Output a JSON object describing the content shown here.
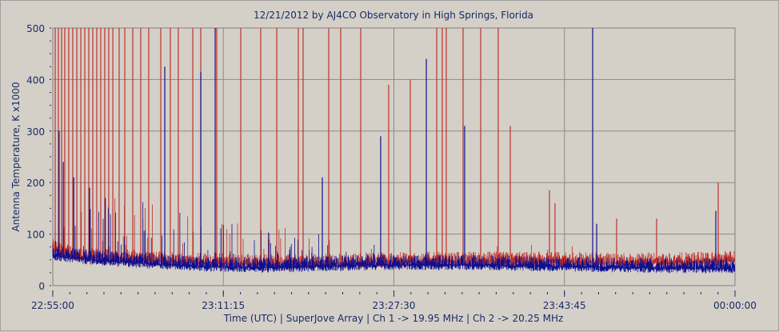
{
  "chart_data": {
    "type": "line",
    "title": "12/21/2012  by  AJ4CO Observatory  in  High Springs, Florida",
    "xlabel": "Time (UTC)  |  SuperJove Array  |  Ch 1 -> 19.95 MHz  |  Ch 2 -> 20.25 MHz",
    "ylabel": "Antenna Temperature, K x1000",
    "x_unit": "minutes after 22:55:00",
    "xlim": [
      0,
      65
    ],
    "ylim": [
      0,
      500
    ],
    "yticks": [
      0,
      100,
      200,
      300,
      400,
      500
    ],
    "ytick_labels": [
      "0",
      "100",
      "200",
      "300",
      "400",
      "500"
    ],
    "xticks": [
      0,
      16.25,
      32.5,
      48.75,
      65
    ],
    "xtick_labels": [
      "22:55:00",
      "23:11:15",
      "23:27:30",
      "23:43:45",
      "00:00:00"
    ],
    "grid": true,
    "series": [
      {
        "name": "Ch 1 (19.95 MHz)",
        "color": "#c0302a",
        "baseline": [
          [
            0,
            70
          ],
          [
            1,
            62
          ],
          [
            3,
            55
          ],
          [
            6,
            50
          ],
          [
            10,
            47
          ],
          [
            15,
            44
          ],
          [
            20,
            42
          ],
          [
            25,
            42
          ],
          [
            30,
            44
          ],
          [
            35,
            46
          ],
          [
            40,
            46
          ],
          [
            45,
            46
          ],
          [
            50,
            45
          ],
          [
            55,
            44
          ],
          [
            60,
            45
          ],
          [
            65,
            48
          ]
        ],
        "spikes": [
          [
            0.23,
            500
          ],
          [
            0.53,
            500
          ],
          [
            0.84,
            500
          ],
          [
            1.14,
            500
          ],
          [
            1.52,
            500
          ],
          [
            1.9,
            500
          ],
          [
            2.29,
            500
          ],
          [
            2.67,
            500
          ],
          [
            3.05,
            500
          ],
          [
            3.43,
            500
          ],
          [
            3.81,
            500
          ],
          [
            4.19,
            500
          ],
          [
            4.57,
            500
          ],
          [
            4.95,
            500
          ],
          [
            5.33,
            500
          ],
          [
            5.72,
            500
          ],
          [
            6.32,
            500
          ],
          [
            6.86,
            500
          ],
          [
            7.62,
            500
          ],
          [
            8.38,
            500
          ],
          [
            9.14,
            500
          ],
          [
            10.29,
            500
          ],
          [
            11.2,
            500
          ],
          [
            11.96,
            500
          ],
          [
            13.34,
            500
          ],
          [
            14.1,
            500
          ],
          [
            15.62,
            500
          ],
          [
            17.91,
            500
          ],
          [
            19.81,
            500
          ],
          [
            21.34,
            500
          ],
          [
            23.39,
            500
          ],
          [
            23.85,
            500
          ],
          [
            26.29,
            500
          ],
          [
            27.43,
            500
          ],
          [
            29.34,
            500
          ],
          [
            32.0,
            390
          ],
          [
            34.06,
            400
          ],
          [
            36.58,
            500
          ],
          [
            37.11,
            500
          ],
          [
            37.49,
            500
          ],
          [
            39.09,
            500
          ],
          [
            40.77,
            500
          ],
          [
            42.44,
            500
          ],
          [
            43.59,
            310
          ],
          [
            47.32,
            185
          ],
          [
            47.85,
            160
          ],
          [
            53.72,
            130
          ],
          [
            57.53,
            130
          ],
          [
            63.4,
            200
          ]
        ]
      },
      {
        "name": "Ch 2 (20.25 MHz)",
        "color": "#10108f",
        "baseline": [
          [
            0,
            60
          ],
          [
            1,
            55
          ],
          [
            3,
            52
          ],
          [
            5,
            48
          ],
          [
            10,
            42
          ],
          [
            15,
            37
          ],
          [
            20,
            35
          ],
          [
            25,
            37
          ],
          [
            30,
            40
          ],
          [
            35,
            40
          ],
          [
            40,
            40
          ],
          [
            45,
            38
          ],
          [
            50,
            36
          ],
          [
            55,
            35
          ],
          [
            60,
            34
          ],
          [
            65,
            33
          ]
        ],
        "spikes": [
          [
            0.6,
            300
          ],
          [
            1.0,
            240
          ],
          [
            2.0,
            210
          ],
          [
            3.5,
            190
          ],
          [
            5.0,
            170
          ],
          [
            10.67,
            425
          ],
          [
            14.1,
            415
          ],
          [
            15.47,
            500
          ],
          [
            25.68,
            210
          ],
          [
            31.24,
            290
          ],
          [
            35.59,
            440
          ],
          [
            39.24,
            310
          ],
          [
            51.44,
            500
          ],
          [
            51.82,
            120
          ],
          [
            63.17,
            145
          ]
        ]
      }
    ]
  }
}
